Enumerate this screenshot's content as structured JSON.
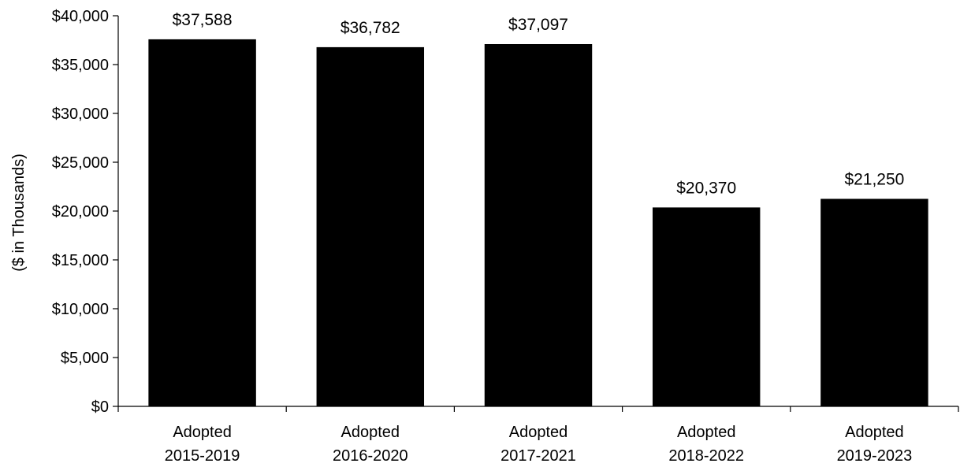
{
  "chart_data": {
    "type": "bar",
    "categories": [
      [
        "Adopted",
        "2015-2019"
      ],
      [
        "Adopted",
        "2016-2020"
      ],
      [
        "Adopted",
        "2017-2021"
      ],
      [
        "Adopted",
        "2018-2022"
      ],
      [
        "Adopted",
        "2019-2023"
      ]
    ],
    "values": [
      37588,
      36782,
      37097,
      20370,
      21250
    ],
    "data_labels": [
      "$37,588",
      "$36,782",
      "$37,097",
      "$20,370",
      "$21,250"
    ],
    "title": "",
    "xlabel": "",
    "ylabel": "($ in Thousands)",
    "ylim": [
      0,
      40000
    ],
    "yticks": [
      0,
      5000,
      10000,
      15000,
      20000,
      25000,
      30000,
      35000,
      40000
    ],
    "ytick_labels": [
      "$0",
      "$5,000",
      "$10,000",
      "$15,000",
      "$20,000",
      "$25,000",
      "$30,000",
      "$35,000",
      "$40,000"
    ],
    "grid": false,
    "legend": "none",
    "bar_color": "#000000"
  }
}
